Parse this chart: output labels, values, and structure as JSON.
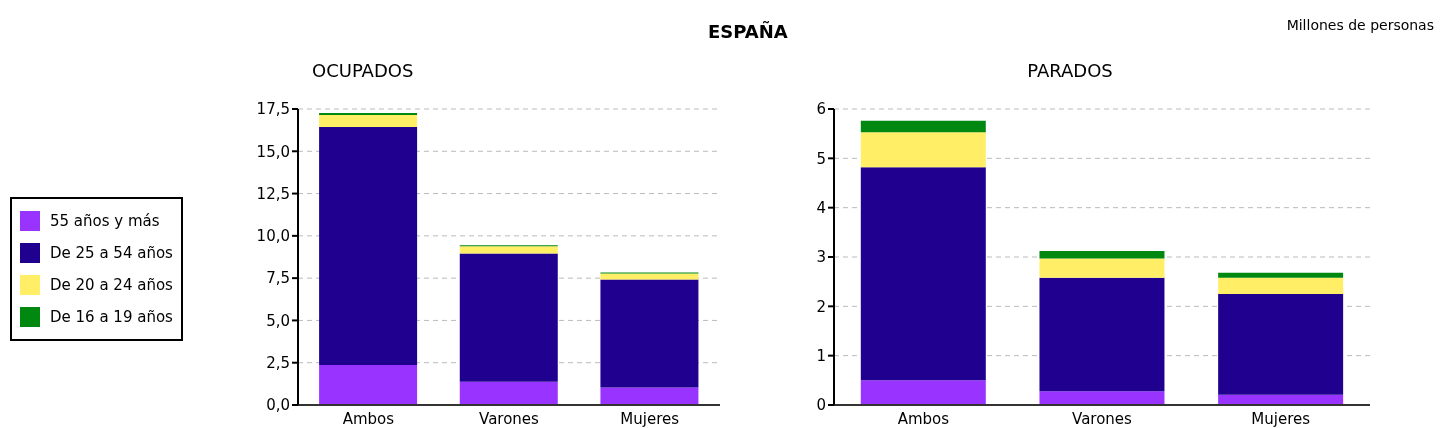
{
  "chart_data": [
    {
      "type": "bar",
      "title": "OCUPADOS",
      "annotations": [
        "ESPAÑA"
      ],
      "categories": [
        "Ambos",
        "Varones",
        "Mujeres"
      ],
      "stacked": true,
      "legend": "left",
      "grid": "y",
      "ylim": [
        0,
        17.5
      ],
      "yticks": [
        {
          "value": 0,
          "label": "0,0"
        },
        {
          "value": 2.5,
          "label": "2,5"
        },
        {
          "value": 5,
          "label": "5,0"
        },
        {
          "value": 7.5,
          "label": "7,5"
        },
        {
          "value": 10,
          "label": "10,0"
        },
        {
          "value": 12.5,
          "label": "12,5"
        },
        {
          "value": 15,
          "label": "15,0"
        },
        {
          "value": 17.5,
          "label": "17,5"
        }
      ],
      "series": [
        {
          "name": "55 años y más",
          "color": "#9933ff",
          "values": [
            2.37,
            1.38,
            1.03
          ]
        },
        {
          "name": "De 25 a 54 años",
          "color": "#1f008f",
          "values": [
            14.06,
            7.58,
            6.39
          ]
        },
        {
          "name": "De 20 a 24 años",
          "color": "#ffee66",
          "values": [
            0.71,
            0.43,
            0.35
          ]
        },
        {
          "name": "De 16 a 19 años",
          "color": "#008811",
          "values": [
            0.12,
            0.06,
            0.06
          ]
        }
      ]
    },
    {
      "type": "bar",
      "title": "PARADOS",
      "annotations": [
        "Millones de personas"
      ],
      "categories": [
        "Ambos",
        "Varones",
        "Mujeres"
      ],
      "stacked": true,
      "grid": "y",
      "ylim": [
        0,
        6
      ],
      "yticks": [
        0,
        1,
        2,
        3,
        4,
        5,
        6
      ],
      "series": [
        {
          "color": "#9933ff",
          "values": [
            0.5,
            0.28,
            0.21
          ]
        },
        {
          "color": "#1f008f",
          "values": [
            4.32,
            2.3,
            2.04
          ]
        },
        {
          "color": "#ffee66",
          "values": [
            0.71,
            0.39,
            0.33
          ]
        },
        {
          "color": "#008811",
          "values": [
            0.23,
            0.15,
            0.1
          ]
        }
      ]
    }
  ]
}
